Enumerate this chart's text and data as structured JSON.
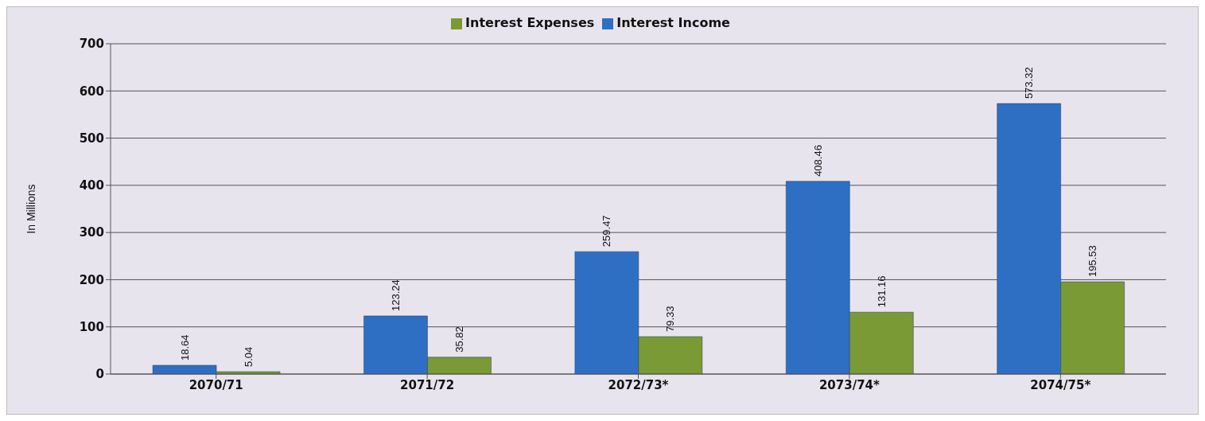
{
  "chart_data": {
    "type": "bar",
    "ylabel": "In Millions",
    "categories": [
      "2070/71",
      "2071/72",
      "2072/73*",
      "2073/74*",
      "2074/75*"
    ],
    "series": [
      {
        "name": "Interest Income",
        "color": "#2e6fc4",
        "values": [
          18.64,
          123.24,
          259.47,
          408.46,
          573.32
        ]
      },
      {
        "name": "Interest Expenses",
        "color": "#7a9a35",
        "values": [
          5.04,
          35.82,
          79.33,
          131.16,
          195.53
        ]
      }
    ],
    "ylim": [
      0,
      700
    ],
    "yticks": [
      0,
      100,
      200,
      300,
      400,
      500,
      600,
      700
    ],
    "grid": "y",
    "legend": "top",
    "data_labels": true
  }
}
